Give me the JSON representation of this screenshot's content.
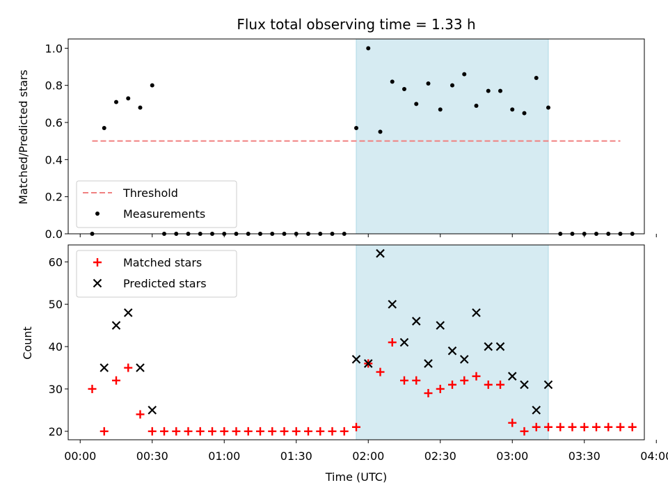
{
  "title": "Flux total observing time = 1.33 h",
  "colors": {
    "threshold": "#f08080",
    "measurement": "#000000",
    "matched": "#ff0000",
    "predicted": "#000000",
    "span": "#add8e6"
  },
  "chart_data": [
    {
      "type": "scatter",
      "ylabel": "Matched/Predicted stars",
      "ylim": [
        0,
        1.05
      ],
      "yticks": [
        "0.0",
        "0.2",
        "0.4",
        "0.6",
        "0.8",
        "1.0"
      ],
      "xlim_min": [
        -5,
        235
      ],
      "highlight_span_min": [
        115,
        195
      ],
      "legend": {
        "placement": "lower-left",
        "entries": [
          "Threshold",
          "Measurements"
        ]
      },
      "threshold": {
        "name": "Threshold",
        "value": 0.5,
        "x_range_min": [
          5,
          225
        ],
        "style": "dashed"
      },
      "series": [
        {
          "name": "Measurements",
          "marker": "dot",
          "x_min": [
            5,
            10,
            15,
            20,
            25,
            30,
            35,
            40,
            45,
            50,
            55,
            60,
            65,
            70,
            75,
            80,
            85,
            90,
            95,
            100,
            105,
            110,
            115,
            120,
            125,
            130,
            135,
            140,
            145,
            150,
            155,
            160,
            165,
            170,
            175,
            180,
            185,
            190,
            195,
            200,
            205,
            210,
            215,
            220,
            225,
            230
          ],
          "y": [
            0.0,
            0.57,
            0.71,
            0.73,
            0.68,
            0.8,
            0.0,
            0.0,
            0.0,
            0.0,
            0.0,
            0.0,
            0.0,
            0.0,
            0.0,
            0.0,
            0.0,
            0.0,
            0.0,
            0.0,
            0.0,
            0.0,
            0.57,
            1.0,
            0.55,
            0.82,
            0.78,
            0.7,
            0.81,
            0.67,
            0.8,
            0.86,
            0.69,
            0.77,
            0.77,
            0.67,
            0.65,
            0.84,
            0.68,
            0.0,
            0.0,
            0.0,
            0.0,
            0.0,
            0.0,
            0.0
          ]
        }
      ]
    },
    {
      "type": "scatter",
      "xlabel": "Time (UTC)",
      "ylabel": "Count",
      "ylim": [
        18,
        64
      ],
      "yticks": [
        "20",
        "30",
        "40",
        "50",
        "60"
      ],
      "xlim_min": [
        -5,
        235
      ],
      "xticks": [
        {
          "label": "00:00",
          "min": 0
        },
        {
          "label": "00:30",
          "min": 30
        },
        {
          "label": "01:00",
          "min": 60
        },
        {
          "label": "01:30",
          "min": 90
        },
        {
          "label": "02:00",
          "min": 120
        },
        {
          "label": "02:30",
          "min": 150
        },
        {
          "label": "03:00",
          "min": 180
        },
        {
          "label": "03:30",
          "min": 210
        },
        {
          "label": "04:00",
          "min": 240
        }
      ],
      "highlight_span_min": [
        115,
        195
      ],
      "legend": {
        "placement": "upper-left",
        "entries": [
          "Matched stars",
          "Predicted stars"
        ]
      },
      "series": [
        {
          "name": "Matched stars",
          "marker": "plus",
          "x_min": [
            5,
            10,
            15,
            20,
            25,
            30,
            35,
            40,
            45,
            50,
            55,
            60,
            65,
            70,
            75,
            80,
            85,
            90,
            95,
            100,
            105,
            110,
            115,
            120,
            125,
            130,
            135,
            140,
            145,
            150,
            155,
            160,
            165,
            170,
            175,
            180,
            185,
            190,
            195,
            200,
            205,
            210,
            215,
            220,
            225,
            230
          ],
          "y": [
            30,
            20,
            32,
            35,
            24,
            20,
            20,
            20,
            20,
            20,
            20,
            20,
            20,
            20,
            20,
            20,
            20,
            20,
            20,
            20,
            20,
            20,
            21,
            36,
            34,
            41,
            32,
            32,
            29,
            30,
            31,
            32,
            33,
            31,
            31,
            22,
            20,
            21,
            21,
            21,
            21,
            21,
            21,
            21,
            21,
            21
          ]
        },
        {
          "name": "Predicted stars",
          "marker": "x",
          "x_min": [
            10,
            15,
            20,
            25,
            30,
            115,
            120,
            125,
            130,
            135,
            140,
            145,
            150,
            155,
            160,
            165,
            170,
            175,
            180,
            185,
            190,
            195
          ],
          "y": [
            35,
            45,
            48,
            35,
            25,
            37,
            36,
            62,
            50,
            41,
            46,
            36,
            45,
            39,
            37,
            48,
            40,
            40,
            33,
            31,
            25,
            31
          ]
        }
      ]
    }
  ]
}
